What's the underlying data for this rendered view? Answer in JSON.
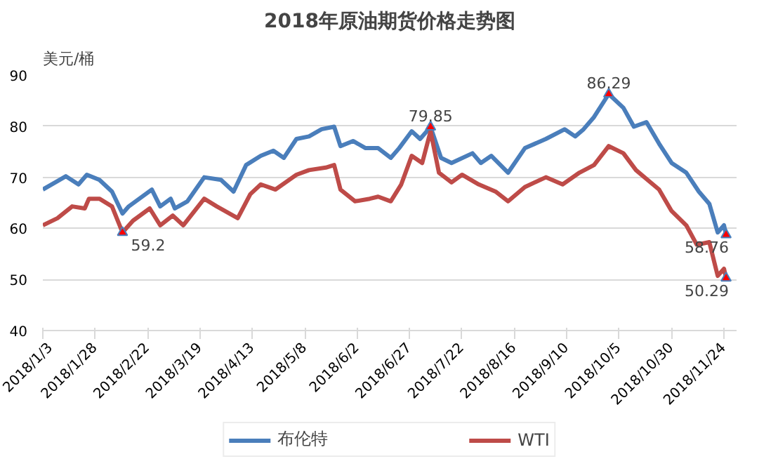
{
  "chart_data": {
    "type": "line",
    "title": "2018年原油期货价格走势图",
    "ylabel": "美元/桶",
    "xlim": [
      "2018-01-03",
      "2018-11-30"
    ],
    "xticks": [
      {
        "value": "2018-01-03",
        "label": "2018/1/3"
      },
      {
        "value": "2018-01-28",
        "label": "2018/1/28"
      },
      {
        "value": "2018-02-22",
        "label": "2018/2/22"
      },
      {
        "value": "2018-03-19",
        "label": "2018/3/19"
      },
      {
        "value": "2018-04-13",
        "label": "2018/4/13"
      },
      {
        "value": "2018-05-08",
        "label": "2018/5/8"
      },
      {
        "value": "2018-06-02",
        "label": "2018/6/2"
      },
      {
        "value": "2018-06-27",
        "label": "2018/6/27"
      },
      {
        "value": "2018-07-22",
        "label": "2018/7/22"
      },
      {
        "value": "2018-08-16",
        "label": "2018/8/16"
      },
      {
        "value": "2018-09-10",
        "label": "2018/9/10"
      },
      {
        "value": "2018-10-05",
        "label": "2018/10/5"
      },
      {
        "value": "2018-10-30",
        "label": "2018/10/30"
      },
      {
        "value": "2018-11-24",
        "label": "2018/11/24"
      }
    ],
    "ylim": [
      40,
      90
    ],
    "yticks": [
      40,
      50,
      60,
      70,
      80,
      90
    ],
    "grid": "y",
    "legend": "bottom",
    "line_style": "solid",
    "series": [
      {
        "name": "布伦特",
        "color": "#4a7ebb",
        "x": [
          "2018-01-03",
          "2018-01-14",
          "2018-01-20",
          "2018-01-24",
          "2018-01-30",
          "2018-02-05",
          "2018-02-10",
          "2018-02-13",
          "2018-02-24",
          "2018-02-28",
          "2018-03-05",
          "2018-03-07",
          "2018-03-13",
          "2018-03-21",
          "2018-03-29",
          "2018-04-04",
          "2018-04-10",
          "2018-04-17",
          "2018-04-23",
          "2018-04-28",
          "2018-05-04",
          "2018-05-10",
          "2018-05-16",
          "2018-05-22",
          "2018-05-25",
          "2018-05-31",
          "2018-06-06",
          "2018-06-12",
          "2018-06-18",
          "2018-06-22",
          "2018-06-28",
          "2018-07-02",
          "2018-07-07",
          "2018-07-12",
          "2018-07-17",
          "2018-07-27",
          "2018-07-31",
          "2018-08-05",
          "2018-08-13",
          "2018-08-21",
          "2018-08-31",
          "2018-09-09",
          "2018-09-14",
          "2018-09-18",
          "2018-09-23",
          "2018-09-30",
          "2018-10-07",
          "2018-10-12",
          "2018-10-18",
          "2018-10-24",
          "2018-10-30",
          "2018-11-06",
          "2018-11-12",
          "2018-11-17",
          "2018-11-21",
          "2018-11-24",
          "2018-11-25"
        ],
        "values": [
          67.6,
          70.2,
          68.6,
          70.5,
          69.5,
          67.2,
          62.9,
          64.3,
          67.6,
          64.3,
          65.8,
          63.9,
          65.3,
          70,
          69.5,
          67.2,
          72.4,
          74.2,
          75.2,
          73.8,
          77.5,
          78,
          79.4,
          79.9,
          76.1,
          77.1,
          75.7,
          75.7,
          73.8,
          75.7,
          79,
          77.5,
          79.85,
          73.8,
          72.8,
          74.7,
          72.8,
          74.2,
          70.9,
          75.7,
          77.5,
          79.4,
          78,
          79.4,
          81.8,
          86.29,
          83.6,
          79.9,
          80.8,
          76.6,
          72.8,
          70.9,
          67.2,
          64.8,
          59.2,
          60.6,
          58.76
        ]
      },
      {
        "name": "WTI",
        "color": "#be4b48",
        "x": [
          "2018-01-03",
          "2018-01-10",
          "2018-01-17",
          "2018-01-23",
          "2018-01-25",
          "2018-01-30",
          "2018-02-05",
          "2018-02-10",
          "2018-02-15",
          "2018-02-23",
          "2018-02-28",
          "2018-03-06",
          "2018-03-11",
          "2018-03-21",
          "2018-03-27",
          "2018-04-06",
          "2018-04-12",
          "2018-04-17",
          "2018-04-24",
          "2018-05-04",
          "2018-05-10",
          "2018-05-18",
          "2018-05-22",
          "2018-05-25",
          "2018-06-01",
          "2018-06-08",
          "2018-06-12",
          "2018-06-18",
          "2018-06-23",
          "2018-06-28",
          "2018-07-03",
          "2018-07-07",
          "2018-07-11",
          "2018-07-17",
          "2018-07-22",
          "2018-07-30",
          "2018-08-07",
          "2018-08-13",
          "2018-08-21",
          "2018-08-31",
          "2018-09-08",
          "2018-09-16",
          "2018-09-23",
          "2018-09-30",
          "2018-10-07",
          "2018-10-13",
          "2018-10-24",
          "2018-10-30",
          "2018-11-06",
          "2018-11-11",
          "2018-11-17",
          "2018-11-21",
          "2018-11-24",
          "2018-11-25"
        ],
        "values": [
          60.6,
          62,
          64.3,
          63.9,
          65.8,
          65.8,
          64.3,
          59.2,
          61.5,
          63.9,
          60.6,
          62.5,
          60.6,
          65.8,
          64.3,
          62,
          66.7,
          68.6,
          67.6,
          70.5,
          71.4,
          71.9,
          72.4,
          67.6,
          65.3,
          65.8,
          66.2,
          65.3,
          68.6,
          74.2,
          72.8,
          79,
          70.9,
          69,
          70.5,
          68.6,
          67.2,
          65.3,
          68.1,
          70,
          68.6,
          70.9,
          72.4,
          76.1,
          74.7,
          71.4,
          67.6,
          63.4,
          60.6,
          56.8,
          57.3,
          50.7,
          52.1,
          50.29
        ]
      }
    ],
    "annotations": [
      {
        "text": "59.2",
        "x": "2018-02-10",
        "y": 59.2
      },
      {
        "text": "79.85",
        "x": "2018-07-07",
        "y": 79.85
      },
      {
        "text": "86.29",
        "x": "2018-09-30",
        "y": 86.29
      },
      {
        "text": "58.76",
        "x": "2018-11-25",
        "y": 58.76
      },
      {
        "text": "50.29",
        "x": "2018-11-25",
        "y": 50.29
      }
    ]
  }
}
